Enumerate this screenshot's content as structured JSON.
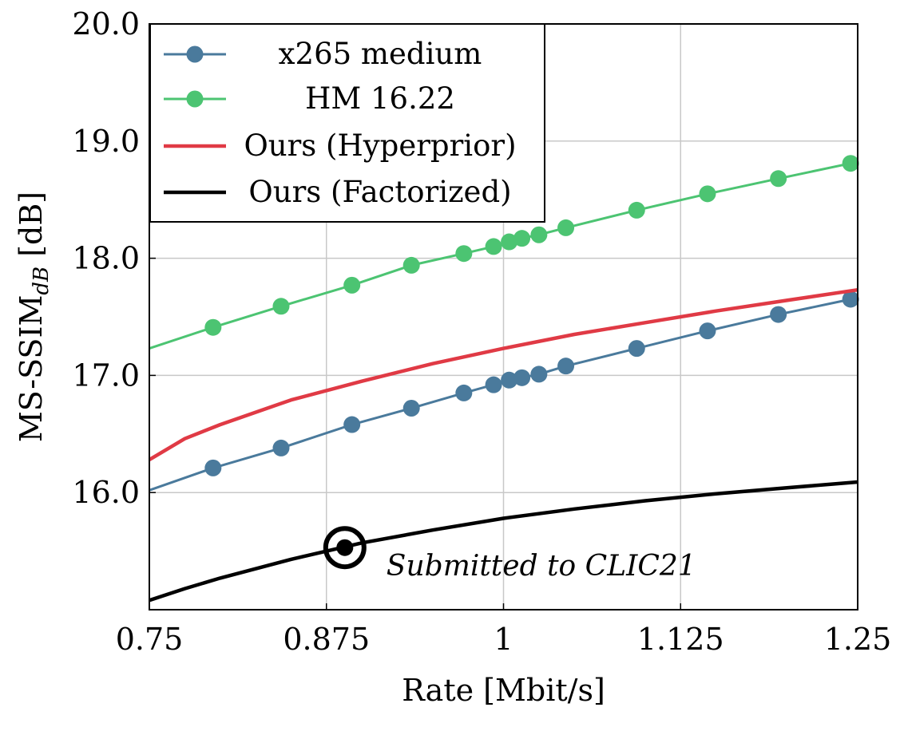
{
  "chart_data": {
    "type": "line",
    "xlabel": "Rate [Mbit/s]",
    "ylabel": "MS-SSIM",
    "ylabel_sub": "dB",
    "ylabel_suffix": " [dB]",
    "xlim": [
      0.75,
      1.25
    ],
    "ylim": [
      15.0,
      20.0
    ],
    "xticks": [
      {
        "v": 0.75,
        "label": "0.75"
      },
      {
        "v": 0.875,
        "label": "0.875"
      },
      {
        "v": 1.0,
        "label": "1"
      },
      {
        "v": 1.125,
        "label": "1.125"
      },
      {
        "v": 1.25,
        "label": "1.25"
      }
    ],
    "yticks": [
      {
        "v": 16.0,
        "label": "16.0"
      },
      {
        "v": 17.0,
        "label": "17.0"
      },
      {
        "v": 18.0,
        "label": "18.0"
      },
      {
        "v": 19.0,
        "label": "19.0"
      },
      {
        "v": 20.0,
        "label": "20.0"
      }
    ],
    "grid": true,
    "legend": "top-left",
    "series": [
      {
        "name": "x265 medium",
        "color": "#4a7a9c",
        "markers": true,
        "x": [
          0.795,
          0.843,
          0.893,
          0.935,
          0.972,
          0.993,
          1.004,
          1.013,
          1.025,
          1.044,
          1.094,
          1.144,
          1.194,
          1.245
        ],
        "y": [
          16.21,
          16.38,
          16.58,
          16.72,
          16.85,
          16.92,
          16.96,
          16.98,
          17.01,
          17.08,
          17.23,
          17.38,
          17.52,
          17.65
        ],
        "line_x": [
          0.75,
          0.795,
          0.843,
          0.893,
          0.935,
          0.972,
          0.993,
          1.004,
          1.013,
          1.025,
          1.044,
          1.094,
          1.144,
          1.194,
          1.245,
          1.25
        ],
        "line_y": [
          16.02,
          16.21,
          16.38,
          16.58,
          16.72,
          16.85,
          16.92,
          16.96,
          16.98,
          17.01,
          17.08,
          17.23,
          17.38,
          17.52,
          17.65,
          17.67
        ]
      },
      {
        "name": "HM 16.22",
        "color": "#4cc472",
        "markers": true,
        "x": [
          0.795,
          0.843,
          0.893,
          0.935,
          0.972,
          0.993,
          1.004,
          1.013,
          1.025,
          1.044,
          1.094,
          1.144,
          1.194,
          1.245
        ],
        "y": [
          17.41,
          17.59,
          17.77,
          17.94,
          18.04,
          18.1,
          18.14,
          18.17,
          18.2,
          18.26,
          18.41,
          18.55,
          18.68,
          18.81
        ],
        "line_x": [
          0.75,
          0.795,
          0.843,
          0.893,
          0.935,
          0.972,
          0.993,
          1.004,
          1.013,
          1.025,
          1.044,
          1.094,
          1.144,
          1.194,
          1.245,
          1.25
        ],
        "line_y": [
          17.23,
          17.41,
          17.59,
          17.77,
          17.94,
          18.04,
          18.1,
          18.14,
          18.17,
          18.2,
          18.26,
          18.41,
          18.55,
          18.68,
          18.81,
          18.83
        ]
      },
      {
        "name": "Ours (Hyperprior)",
        "color": "#e03a45",
        "markers": false,
        "x": [
          0.75,
          0.775,
          0.8,
          0.85,
          0.9,
          0.95,
          1.0,
          1.05,
          1.1,
          1.15,
          1.2,
          1.25
        ],
        "y": [
          16.28,
          16.46,
          16.58,
          16.79,
          16.95,
          17.1,
          17.23,
          17.35,
          17.45,
          17.55,
          17.64,
          17.73
        ]
      },
      {
        "name": "Ours (Factorized)",
        "color": "#000000",
        "markers": false,
        "x": [
          0.75,
          0.775,
          0.8,
          0.85,
          0.9,
          0.95,
          1.0,
          1.05,
          1.1,
          1.15,
          1.2,
          1.25
        ],
        "y": [
          15.08,
          15.18,
          15.27,
          15.43,
          15.57,
          15.68,
          15.78,
          15.86,
          15.93,
          15.99,
          16.04,
          16.09
        ]
      }
    ],
    "annotations": [
      {
        "text": "Submitted to CLIC21",
        "x": 0.888,
        "y": 15.53
      }
    ]
  }
}
